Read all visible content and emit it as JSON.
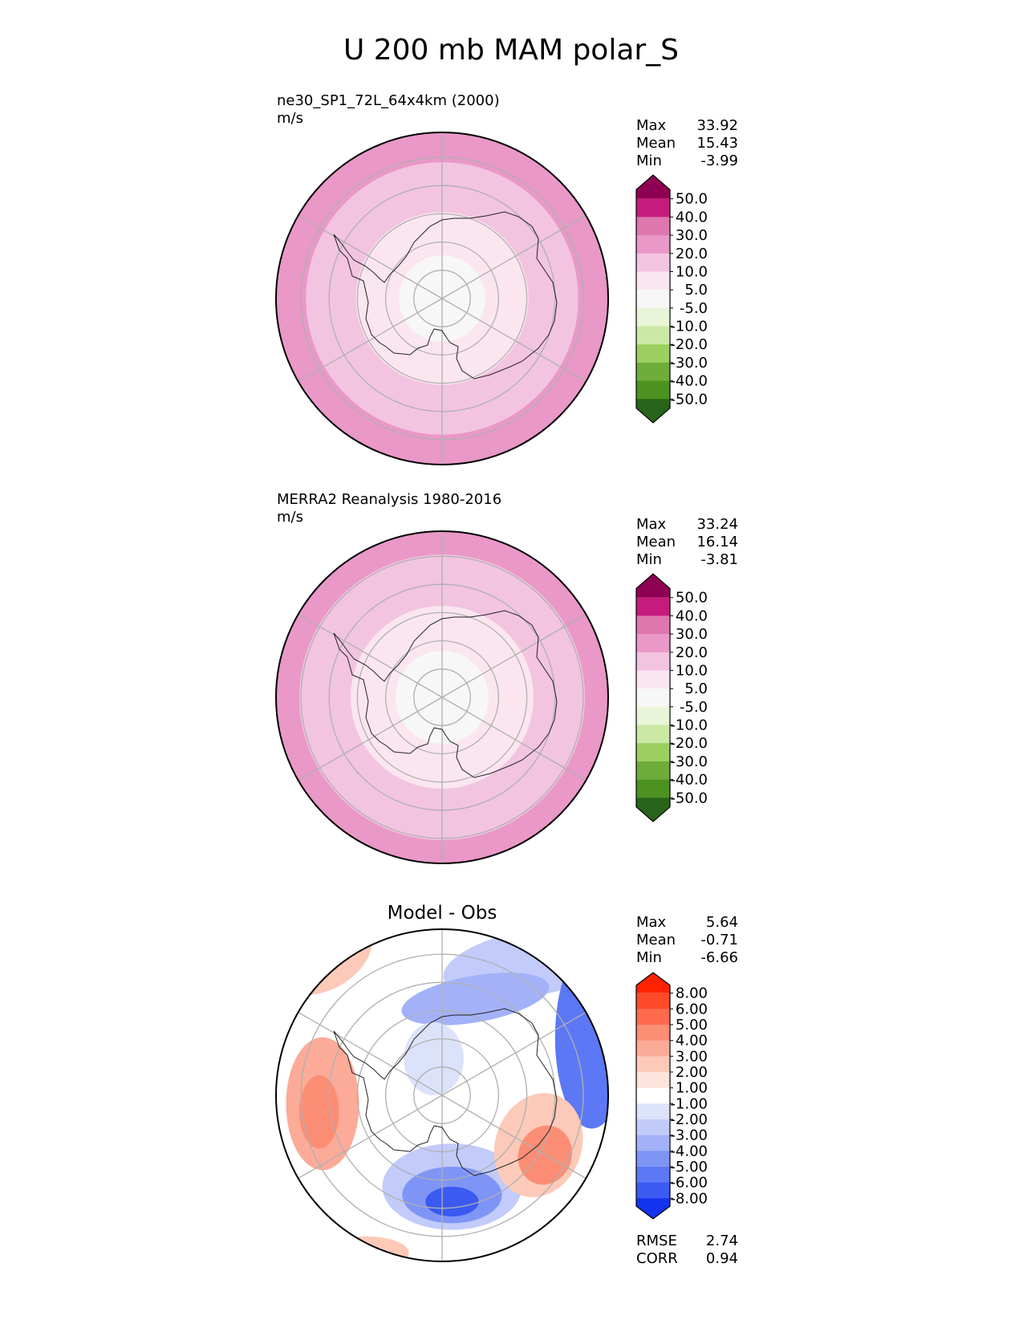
{
  "figure": {
    "title": "U 200 mb MAM polar_S"
  },
  "chart_data": [
    {
      "type": "heatmap",
      "title": "ne30_SP1_72L_64x4km (2000)",
      "units": "m/s",
      "stats": [
        {
          "label": "Max",
          "value": "33.92"
        },
        {
          "label": "Mean",
          "value": "15.43"
        },
        {
          "label": "Min",
          "value": "-3.99"
        }
      ],
      "colorbar": {
        "ticks": [
          "50.0",
          "40.0",
          "30.0",
          "20.0",
          "10.0",
          "5.0",
          "-5.0",
          "-10.0",
          "-20.0",
          "-30.0",
          "-40.0",
          "-50.0"
        ],
        "colors": [
          "#8e0152",
          "#c51b7d",
          "#de77ae",
          "#e998c7",
          "#f2c4e0",
          "#fbe6f0",
          "#f7f7f7",
          "#e8f5d8",
          "#cbe9a5",
          "#9bcf5f",
          "#6ead3a",
          "#4d9221",
          "#276419"
        ],
        "extend": "both"
      },
      "bands": [
        {
          "r": 1.0,
          "color": "#e998c7"
        },
        {
          "r": 0.82,
          "color": "#f2c4e0"
        },
        {
          "r": 0.52,
          "color": "#fbe6f0"
        },
        {
          "r": 0.26,
          "color": "#f7f7f7"
        }
      ]
    },
    {
      "type": "heatmap",
      "title": "MERRA2 Reanalysis 1980-2016",
      "units": "m/s",
      "stats": [
        {
          "label": "Max",
          "value": "33.24"
        },
        {
          "label": "Mean",
          "value": "16.14"
        },
        {
          "label": "Min",
          "value": "-3.81"
        }
      ],
      "colorbar": {
        "ticks": [
          "50.0",
          "40.0",
          "30.0",
          "20.0",
          "10.0",
          "5.0",
          "-5.0",
          "-10.0",
          "-20.0",
          "-30.0",
          "-40.0",
          "-50.0"
        ],
        "colors": [
          "#8e0152",
          "#c51b7d",
          "#de77ae",
          "#e998c7",
          "#f2c4e0",
          "#fbe6f0",
          "#f7f7f7",
          "#e8f5d8",
          "#cbe9a5",
          "#9bcf5f",
          "#6ead3a",
          "#4d9221",
          "#276419"
        ],
        "extend": "both"
      },
      "bands": [
        {
          "r": 1.0,
          "color": "#e998c7"
        },
        {
          "r": 0.86,
          "color": "#f2c4e0"
        },
        {
          "r": 0.55,
          "color": "#fbe6f0"
        },
        {
          "r": 0.28,
          "color": "#f7f7f7"
        }
      ]
    },
    {
      "type": "heatmap",
      "title": "Model - Obs",
      "units": "",
      "stats": [
        {
          "label": "Max",
          "value": "5.64"
        },
        {
          "label": "Mean",
          "value": "-0.71"
        },
        {
          "label": "Min",
          "value": "-6.66"
        }
      ],
      "metrics": [
        {
          "label": "RMSE",
          "value": "2.74"
        },
        {
          "label": "CORR",
          "value": "0.94"
        }
      ],
      "colorbar": {
        "ticks": [
          "8.00",
          "6.00",
          "5.00",
          "4.00",
          "3.00",
          "2.00",
          "1.00",
          "-1.00",
          "-2.00",
          "-3.00",
          "-4.00",
          "-5.00",
          "-6.00",
          "-8.00"
        ],
        "colors": [
          "#ff2200",
          "#ff4a2a",
          "#ff6a4d",
          "#fc8d75",
          "#fcab98",
          "#fdcab9",
          "#fde4dc",
          "#ffffff",
          "#dde2fb",
          "#c2cbfa",
          "#a3b2f8",
          "#7f95f6",
          "#5c78f4",
          "#3a5af2",
          "#1333f0"
        ],
        "extend": "both"
      },
      "bands": [
        {
          "r": 1.0,
          "color": "#ffffff"
        }
      ]
    }
  ]
}
